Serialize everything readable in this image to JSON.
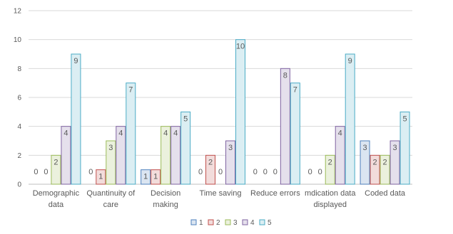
{
  "chart_data": {
    "type": "bar",
    "title": "",
    "xlabel": "",
    "ylabel": "",
    "ylim": [
      0,
      12
    ],
    "yticks": [
      0,
      2,
      4,
      6,
      8,
      10,
      12
    ],
    "grid": true,
    "legend_position": "bottom",
    "categories": [
      [
        "Demographic",
        "data"
      ],
      [
        "Quantinuity of",
        "care"
      ],
      [
        "Decision",
        "making"
      ],
      [
        "Time saving"
      ],
      [
        "Reduce errors"
      ],
      [
        "mdication data",
        "displayed"
      ],
      [
        "Coded data"
      ]
    ],
    "series": [
      {
        "name": "1",
        "color": "#4f81bd",
        "fill": "#dbe5f1",
        "values": [
          0,
          0,
          1,
          0,
          0,
          0,
          3
        ]
      },
      {
        "name": "2",
        "color": "#c0504d",
        "fill": "#f2dcdb",
        "values": [
          0,
          1,
          1,
          2,
          0,
          0,
          2
        ]
      },
      {
        "name": "3",
        "color": "#9bbb59",
        "fill": "#ebf1dd",
        "values": [
          2,
          3,
          4,
          0,
          0,
          2,
          2
        ]
      },
      {
        "name": "4",
        "color": "#8064a2",
        "fill": "#e5e0ec",
        "values": [
          4,
          4,
          4,
          3,
          8,
          4,
          3
        ]
      },
      {
        "name": "5",
        "color": "#4bacc6",
        "fill": "#dbeef3",
        "values": [
          9,
          7,
          5,
          10,
          7,
          9,
          5
        ]
      }
    ]
  }
}
